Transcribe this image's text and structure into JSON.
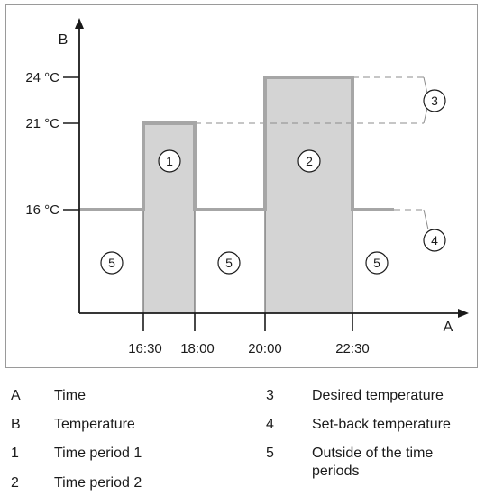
{
  "axis": {
    "x_letter": "A",
    "y_letter": "B"
  },
  "y_ticks": [
    {
      "label": "24 °C",
      "value": 24
    },
    {
      "label": "21 °C",
      "value": 21
    },
    {
      "label": "16 °C",
      "value": 16
    }
  ],
  "x_ticks": [
    {
      "label": "16:30"
    },
    {
      "label": "18:00"
    },
    {
      "label": "20:00"
    },
    {
      "label": "22:30"
    }
  ],
  "callouts": {
    "period1": "1",
    "period2": "2",
    "desired": "3",
    "setback": "4",
    "outside": "5"
  },
  "legend": [
    {
      "key": "A",
      "text": "Time"
    },
    {
      "key": "B",
      "text": "Temperature"
    },
    {
      "key": "1",
      "text": "Time period 1"
    },
    {
      "key": "2",
      "text": "Time period 2"
    },
    {
      "key": "3",
      "text": "Desired temperature"
    },
    {
      "key": "4",
      "text": "Set-back temperature"
    },
    {
      "key": "5",
      "text": "Outside of the time periods"
    }
  ],
  "colors": {
    "curve": "#a6a6a6",
    "fill": "#d4d4d4",
    "axis": "#1a1a1a",
    "dash": "#8c8c8c",
    "frame": "#9a9a9a"
  }
}
